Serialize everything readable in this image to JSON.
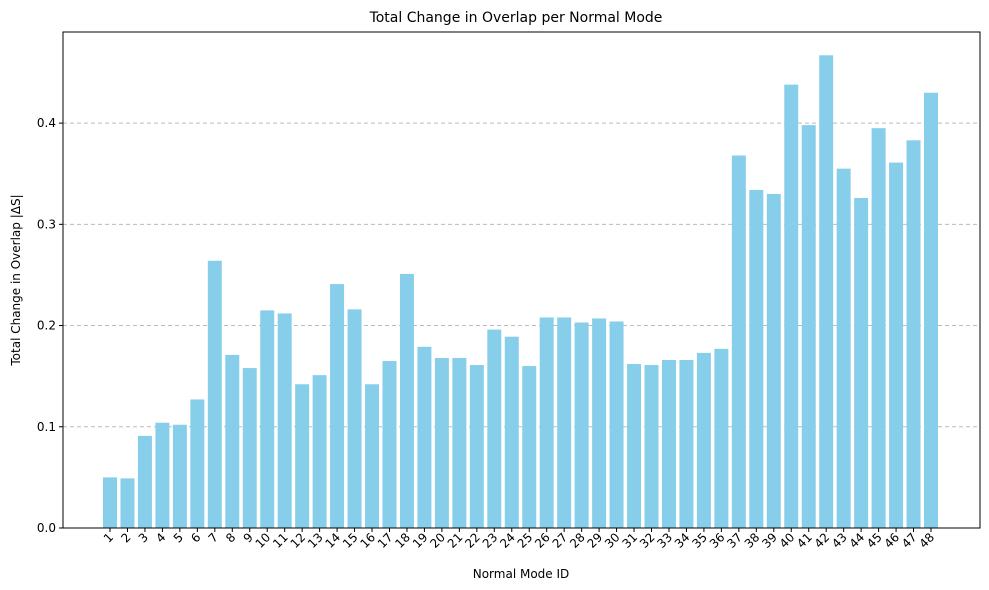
{
  "chart_data": {
    "type": "bar",
    "title": "Total Change in Overlap per Normal Mode",
    "xlabel": "Normal Mode ID",
    "ylabel": "Total Change in Overlap |ΔS|",
    "categories": [
      "1",
      "2",
      "3",
      "4",
      "5",
      "6",
      "7",
      "8",
      "9",
      "10",
      "11",
      "12",
      "13",
      "14",
      "15",
      "16",
      "17",
      "18",
      "19",
      "20",
      "21",
      "22",
      "23",
      "24",
      "25",
      "26",
      "27",
      "28",
      "29",
      "30",
      "31",
      "32",
      "33",
      "34",
      "35",
      "36",
      "37",
      "38",
      "39",
      "40",
      "41",
      "42",
      "43",
      "44",
      "45",
      "46",
      "47",
      "48"
    ],
    "values": [
      0.05,
      0.049,
      0.091,
      0.104,
      0.102,
      0.127,
      0.264,
      0.171,
      0.158,
      0.215,
      0.212,
      0.142,
      0.151,
      0.241,
      0.216,
      0.142,
      0.165,
      0.251,
      0.179,
      0.168,
      0.168,
      0.161,
      0.196,
      0.189,
      0.16,
      0.208,
      0.208,
      0.203,
      0.207,
      0.204,
      0.162,
      0.161,
      0.166,
      0.166,
      0.173,
      0.177,
      0.368,
      0.334,
      0.33,
      0.438,
      0.398,
      0.467,
      0.355,
      0.326,
      0.395,
      0.361,
      0.383,
      0.43
    ],
    "ylim": [
      0,
      0.49
    ],
    "yticks": [
      "0.0",
      "0.1",
      "0.2",
      "0.3",
      "0.4"
    ],
    "ytick_values": [
      0,
      0.1,
      0.2,
      0.3,
      0.4
    ],
    "grid": "y-dashed",
    "bar_color": "#87CEEB",
    "grid_color": "#bbbbbb",
    "axis_color": "#000000"
  }
}
